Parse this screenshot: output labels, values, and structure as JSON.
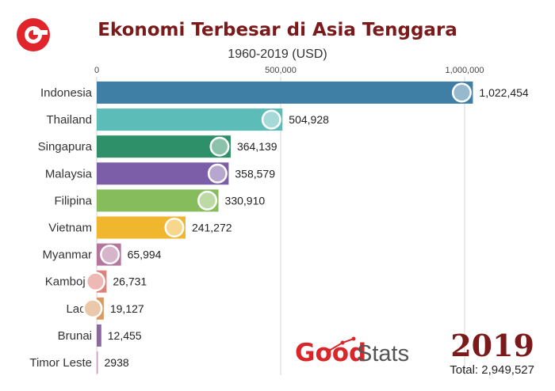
{
  "header": {
    "title": "Ekonomi Terbesar di Asia Tenggara",
    "subtitle": "1960-2019 (USD)"
  },
  "logo": {
    "icon": "goodstats-g-logo-icon",
    "color": "#e0262b"
  },
  "brand": {
    "part1": "Good",
    "part2": "Stats",
    "color1": "#d9262b",
    "color2": "#555555"
  },
  "year": "2019",
  "total": "Total: 2,949,527",
  "chart_data": {
    "type": "bar",
    "orientation": "horizontal",
    "xlim": [
      0,
      1050000
    ],
    "ticks": [
      0,
      500000,
      1000000
    ],
    "tick_labels": [
      "0",
      "500,000",
      "1,000,000"
    ],
    "grid": true,
    "categories": [
      "Indonesia",
      "Thailand",
      "Singapura",
      "Malaysia",
      "Filipina",
      "Vietnam",
      "Myanmar",
      "Kamboja",
      "Laos",
      "Brunai",
      "Timor Leste"
    ],
    "values": [
      1022454,
      504928,
      364139,
      358579,
      330910,
      241272,
      65994,
      26731,
      19127,
      12455,
      2938
    ],
    "value_labels": [
      "1,022,454",
      "504,928",
      "364,139",
      "358,579",
      "330,910",
      "241,272",
      "65,994",
      "26,731",
      "19,127",
      "12,455",
      "2938"
    ],
    "colors": [
      "#3f7fa6",
      "#5cbcb8",
      "#2e9068",
      "#7b5ea7",
      "#86bc5c",
      "#f0b62d",
      "#b5769e",
      "#e08078",
      "#d99a62",
      "#8a6a9e",
      "#c99cc4"
    ],
    "flags": [
      "flag-indonesia-icon",
      "flag-thailand-icon",
      "flag-singapore-icon",
      "flag-malaysia-icon",
      "flag-philippines-icon",
      "flag-vietnam-icon",
      "flag-myanmar-icon",
      "flag-cambodia-icon",
      "flag-laos-icon",
      "flag-brunei-icon",
      "flag-timor-leste-icon"
    ]
  }
}
